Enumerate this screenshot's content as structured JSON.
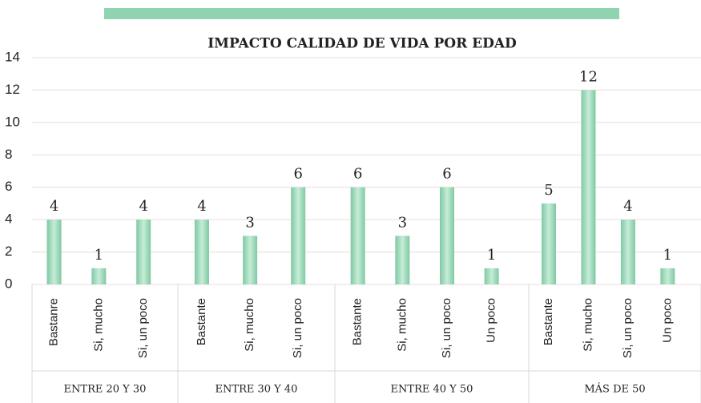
{
  "chart_data": {
    "type": "bar",
    "title": "IMPACTO CALIDAD DE VIDA POR EDAD",
    "groups": [
      {
        "name": "ENTRE 20 Y 30",
        "categories": [
          "Bastanre",
          "Si, mucho",
          "Si, un poco"
        ],
        "values": [
          4,
          1,
          4
        ]
      },
      {
        "name": "ENTRE 30 Y 40",
        "categories": [
          "Bastante",
          "Si, mucho",
          "Si, un poco"
        ],
        "values": [
          4,
          3,
          6
        ]
      },
      {
        "name": "ENTRE 40 Y 50",
        "categories": [
          "Bastante",
          "Si, mucho",
          "Si, un poco",
          "Un poco"
        ],
        "values": [
          6,
          3,
          6,
          1
        ]
      },
      {
        "name": "MÁS DE 50",
        "categories": [
          "Bastante",
          "Si, mucho",
          "Si, un poco",
          "Un poco"
        ],
        "values": [
          5,
          12,
          4,
          1
        ]
      }
    ],
    "color": "#8fd3b0",
    "ylim": [
      0,
      14
    ],
    "yticks": [
      0,
      2,
      4,
      6,
      8,
      10,
      12,
      14
    ],
    "grid": true
  }
}
